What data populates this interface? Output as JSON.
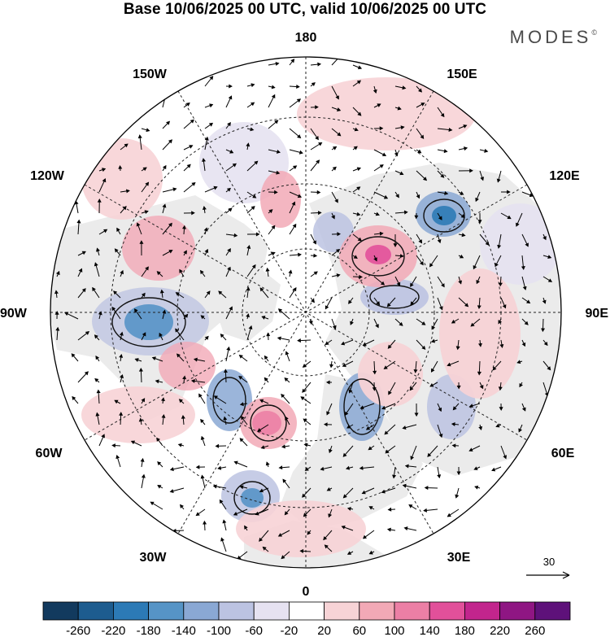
{
  "title": "Base 10/06/2025 00 UTC, valid 10/06/2025 00 UTC",
  "brand": {
    "name": "MODES",
    "mark": "©"
  },
  "map": {
    "projection": "north-polar-stereographic",
    "longitude_labels": {
      "top": "180",
      "bottom": "0",
      "left": "90W",
      "right": "90E",
      "upper_left_1": "150W",
      "upper_left_2": "120W",
      "upper_right_1": "150E",
      "upper_right_2": "120E",
      "lower_left_1": "60W",
      "lower_left_2": "30W",
      "lower_right_1": "60E",
      "lower_right_2": "30E"
    },
    "land_color": "#ececec",
    "ocean_color": "#ffffff",
    "reference_vector_label": "30"
  },
  "colorbar": {
    "labels": [
      "-260",
      "-220",
      "-180",
      "-140",
      "-100",
      "-60",
      "-20",
      "20",
      "60",
      "100",
      "140",
      "180",
      "220",
      "260"
    ],
    "colors": [
      "#123a5e",
      "#1d5c8f",
      "#2c7ab6",
      "#5694c6",
      "#8aa8d4",
      "#bcc3e2",
      "#e6e2f1",
      "#ffffff",
      "#f7d3d6",
      "#f2a9b6",
      "#ec7fa5",
      "#e2509a",
      "#c2258d",
      "#8f1683",
      "#5e117a"
    ]
  }
}
